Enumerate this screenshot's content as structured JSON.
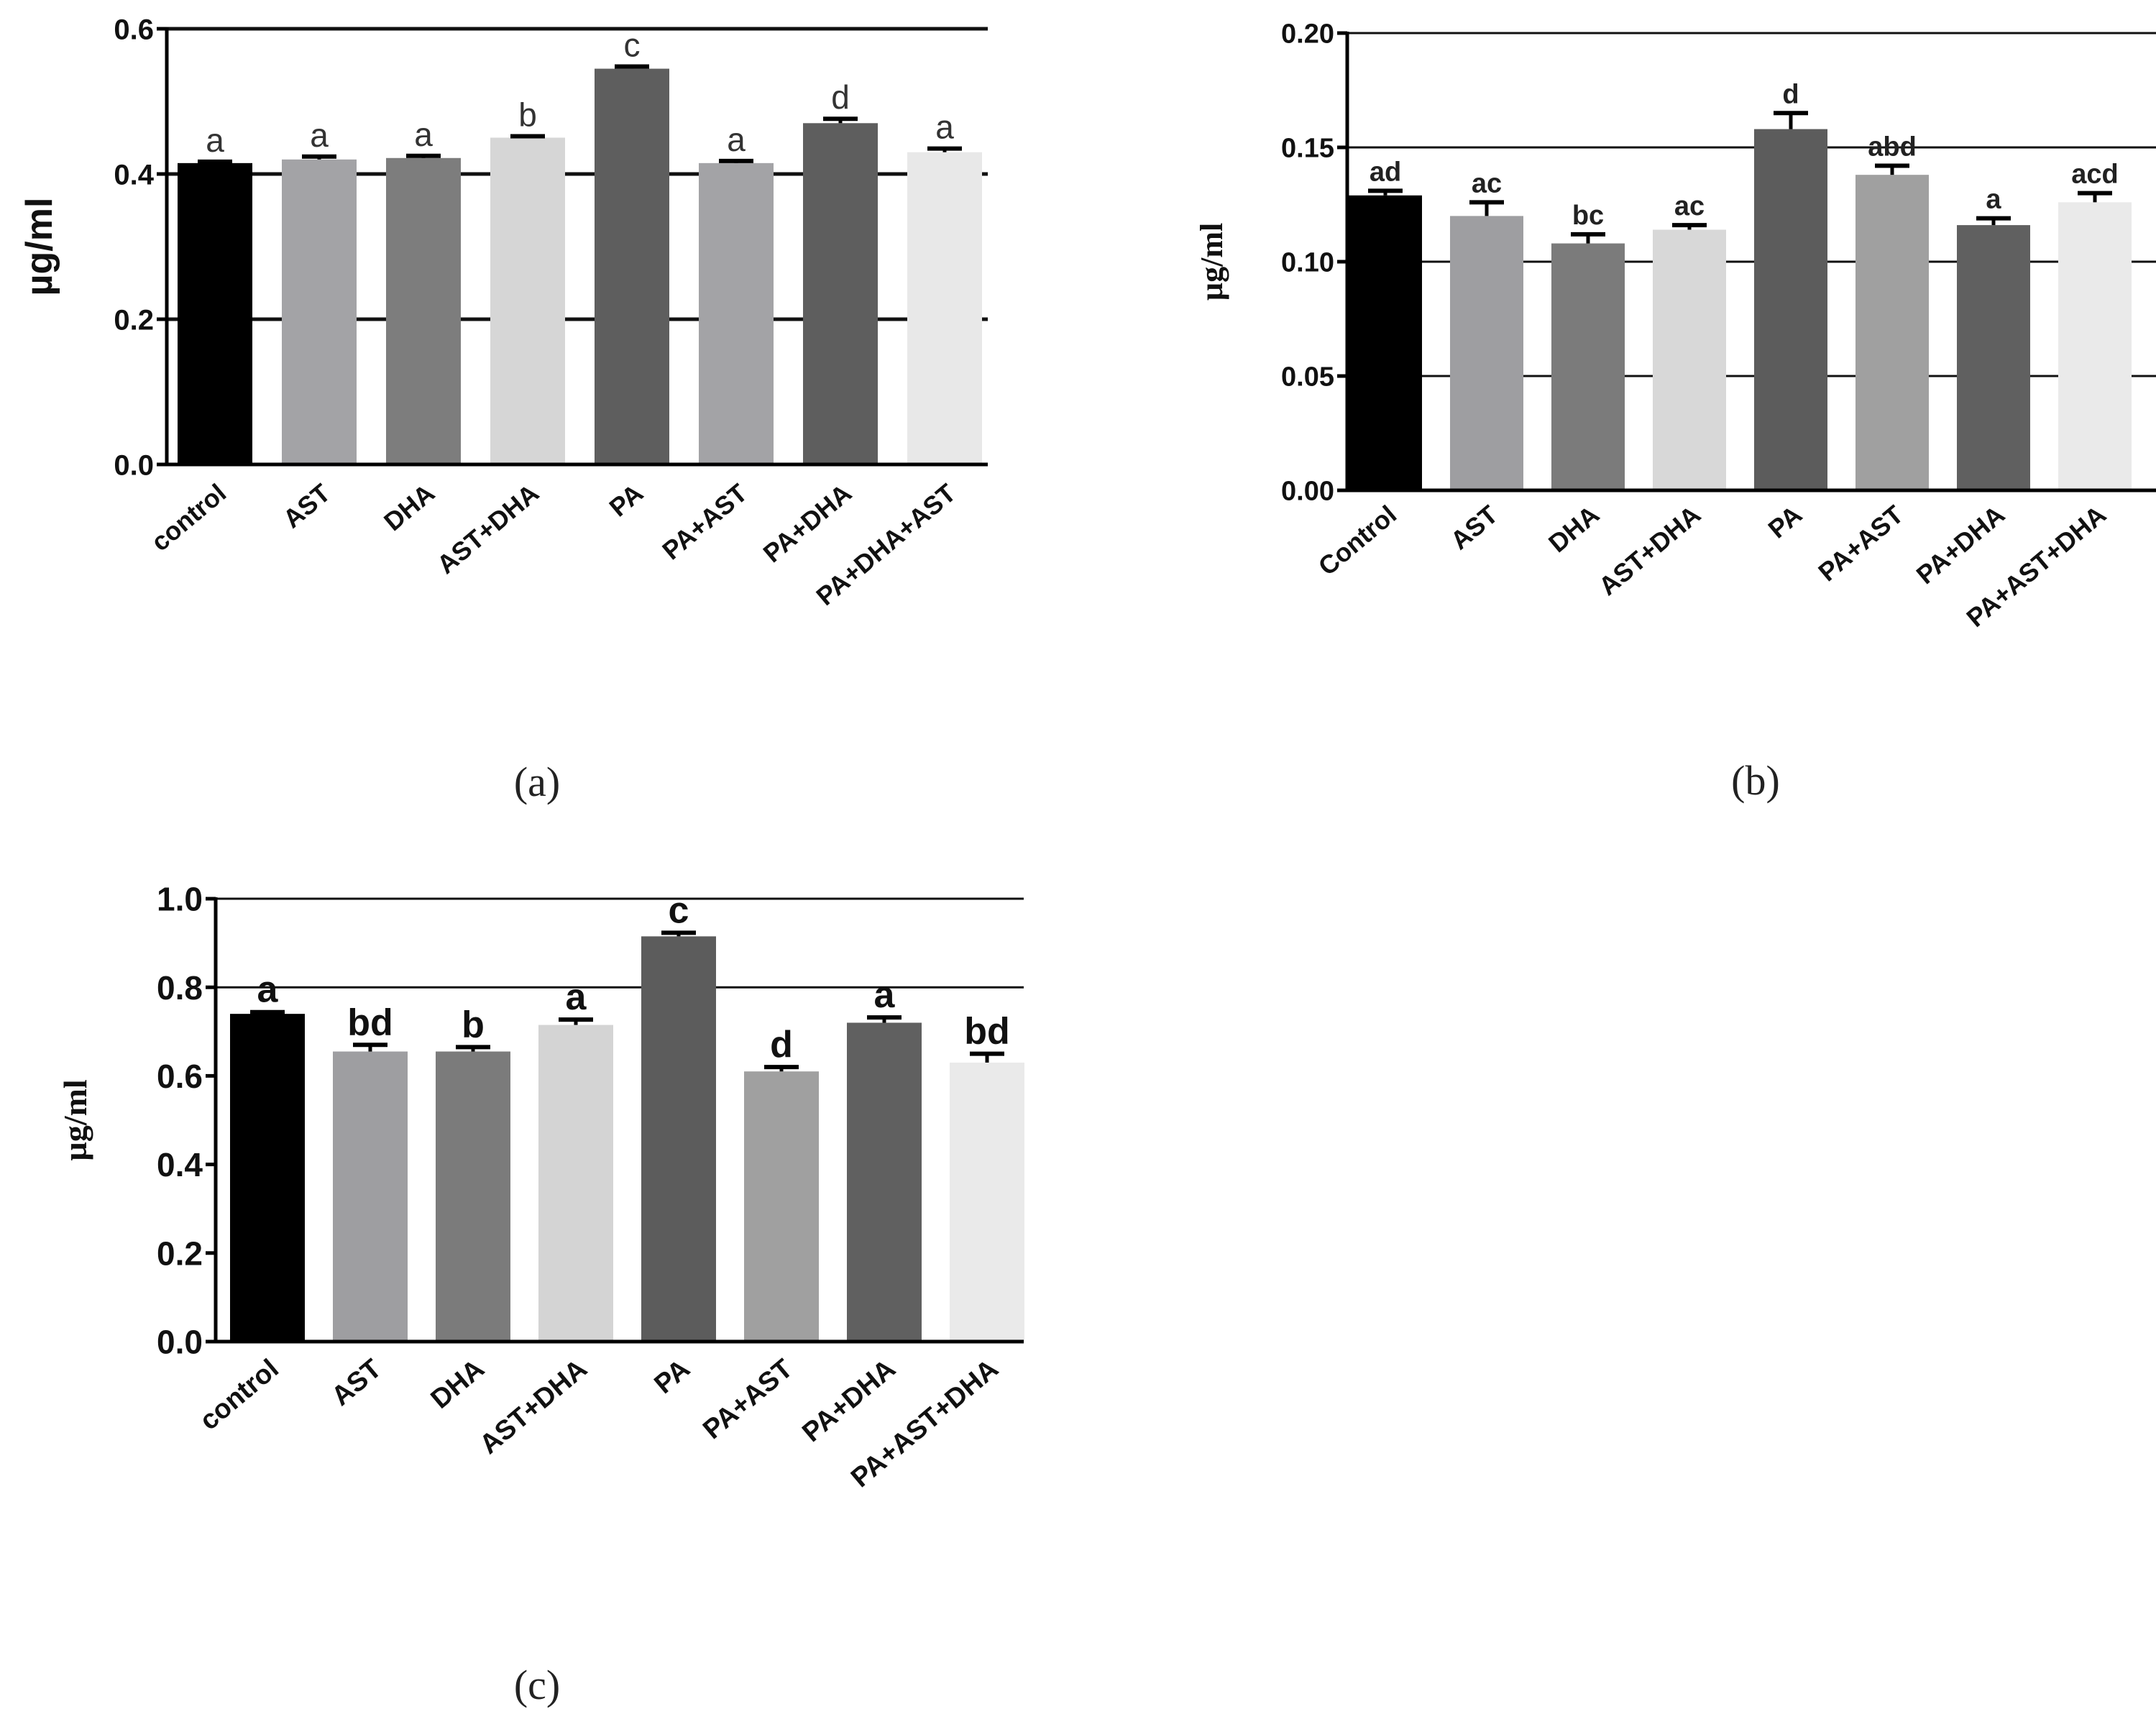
{
  "figure": {
    "panels": [
      {
        "caption": "(a)"
      },
      {
        "caption": "(b)"
      },
      {
        "caption": "(c)"
      }
    ]
  },
  "chart_data": [
    {
      "type": "bar",
      "panel": "(a)",
      "title": "",
      "xlabel": "",
      "ylabel": "µg/ml",
      "ylim": [
        0,
        0.6
      ],
      "yticks": [
        "0.0",
        "0.2",
        "0.4",
        "0.6"
      ],
      "yticks_values": [
        0,
        0.2,
        0.4,
        0.6
      ],
      "gridlines": [
        0.2,
        0.4,
        0.6
      ],
      "categories": [
        "control",
        "AST",
        "DHA",
        "AST+DHA",
        "PA",
        "PA+AST",
        "PA+DHA",
        "PA+DHA+AST"
      ],
      "values": [
        0.415,
        0.42,
        0.422,
        0.45,
        0.545,
        0.415,
        0.47,
        0.43
      ],
      "errors": [
        0.002,
        0.004,
        0.003,
        0.002,
        0.003,
        0.003,
        0.006,
        0.005
      ],
      "labels": [
        "a",
        "a",
        "a",
        "b",
        "c",
        "a",
        "d",
        "a"
      ],
      "bar_colors": [
        "#000000",
        "#a3a3a6",
        "#7d7d7d",
        "#d6d6d6",
        "#5e5e5e",
        "#a3a3a6",
        "#5e5e5e",
        "#e8e8e8"
      ]
    },
    {
      "type": "bar",
      "panel": "(b)",
      "title": "",
      "xlabel": "",
      "ylabel": "µg/ml",
      "ylim": [
        0,
        0.2
      ],
      "yticks": [
        "0.00",
        "0.05",
        "0.10",
        "0.15",
        "0.20"
      ],
      "yticks_values": [
        0,
        0.05,
        0.1,
        0.15,
        0.2
      ],
      "gridlines": [
        0.05,
        0.1,
        0.15,
        0.2
      ],
      "categories": [
        "Control",
        "AST",
        "DHA",
        "AST+DHA",
        "PA",
        "PA+AST",
        "PA+DHA",
        "PA+AST+DHA"
      ],
      "values": [
        0.129,
        0.12,
        0.108,
        0.114,
        0.158,
        0.138,
        0.116,
        0.126
      ],
      "errors": [
        0.002,
        0.006,
        0.004,
        0.002,
        0.007,
        0.004,
        0.003,
        0.004
      ],
      "labels": [
        "ad",
        "ac",
        "bc",
        "ac",
        "d",
        "abd",
        "a",
        "acd"
      ],
      "bar_colors": [
        "#000000",
        "#9e9ea1",
        "#7b7b7b",
        "#d8d8d8",
        "#5c5c5c",
        "#a0a0a0",
        "#606060",
        "#eaeaea"
      ]
    },
    {
      "type": "bar",
      "panel": "(c)",
      "title": "",
      "xlabel": "",
      "ylabel": "µg/ml",
      "ylim": [
        0,
        1.0
      ],
      "yticks": [
        "0.0",
        "0.2",
        "0.4",
        "0.6",
        "0.8",
        "1.0"
      ],
      "yticks_values": [
        0,
        0.2,
        0.4,
        0.6,
        0.8,
        1.0
      ],
      "gridlines": [
        0.8,
        1.0
      ],
      "categories": [
        "control",
        "AST",
        "DHA",
        "AST+DHA",
        "PA",
        "PA+AST",
        "PA+DHA",
        "PA+AST+DHA"
      ],
      "values": [
        0.74,
        0.655,
        0.655,
        0.715,
        0.915,
        0.61,
        0.72,
        0.63
      ],
      "errors": [
        0.004,
        0.015,
        0.01,
        0.012,
        0.008,
        0.01,
        0.012,
        0.02
      ],
      "labels": [
        "a",
        "bd",
        "b",
        "a",
        "c",
        "d",
        "a",
        "bd"
      ],
      "bar_colors": [
        "#000000",
        "#9e9ea1",
        "#7b7b7b",
        "#d4d4d4",
        "#5c5c5c",
        "#a0a0a0",
        "#606060",
        "#eaeaea"
      ]
    }
  ]
}
